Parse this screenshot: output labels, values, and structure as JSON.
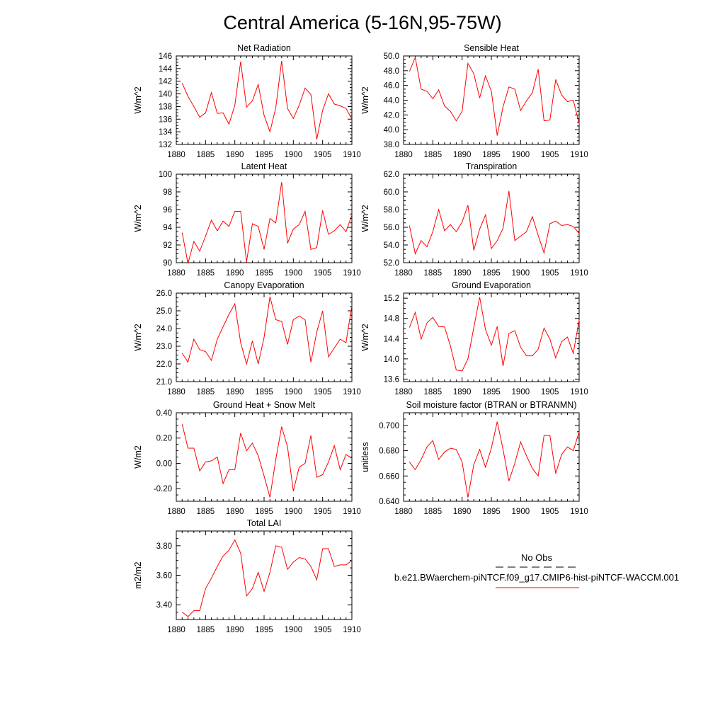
{
  "figure": {
    "title": "Central America (5-16N,95-75W)"
  },
  "legend": {
    "items": [
      {
        "label": "No Obs",
        "style": "dashed",
        "color": "#000000"
      },
      {
        "label": "b.e21.BWaerchem-piNTCF.f09_g17.CMIP6-hist-piNTCF-WACCM.001",
        "style": "solid",
        "color": "#ff0000"
      }
    ]
  },
  "chart_data": [
    {
      "type": "line",
      "title": "Net Radiation",
      "ylabel": "W/m^2",
      "xlim": [
        1880,
        1910
      ],
      "ylim": [
        132,
        146
      ],
      "xticks": [
        1880,
        1885,
        1890,
        1895,
        1900,
        1905,
        1910
      ],
      "yticks": [
        132,
        134,
        136,
        138,
        140,
        142,
        144,
        146
      ],
      "ytick_labels": [
        "132",
        "134",
        "136",
        "138",
        "140",
        "142",
        "144",
        "146"
      ],
      "x": [
        1881,
        1882,
        1883,
        1884,
        1885,
        1886,
        1887,
        1888,
        1889,
        1890,
        1891,
        1892,
        1893,
        1894,
        1895,
        1896,
        1897,
        1898,
        1899,
        1900,
        1901,
        1902,
        1903,
        1904,
        1905,
        1906,
        1907,
        1908,
        1909,
        1910
      ],
      "series": [
        {
          "color": "#ff0000",
          "values": [
            141.7,
            139.6,
            138.0,
            136.3,
            137.0,
            140.2,
            136.9,
            137.0,
            135.2,
            138.2,
            145.1,
            137.9,
            138.9,
            141.5,
            136.6,
            134.0,
            137.8,
            145.2,
            137.7,
            136.1,
            138.2,
            140.9,
            139.9,
            132.8,
            137.4,
            140.0,
            138.4,
            138.1,
            137.7,
            136.0
          ]
        }
      ]
    },
    {
      "type": "line",
      "title": "Sensible Heat",
      "ylabel": "W/m^2",
      "xlim": [
        1880,
        1910
      ],
      "ylim": [
        38,
        50
      ],
      "xticks": [
        1880,
        1885,
        1890,
        1895,
        1900,
        1905,
        1910
      ],
      "yticks": [
        38,
        40,
        42,
        44,
        46,
        48,
        50
      ],
      "ytick_labels": [
        "38.0",
        "40.0",
        "42.0",
        "44.0",
        "46.0",
        "48.0",
        "50.0"
      ],
      "x": [
        1881,
        1882,
        1883,
        1884,
        1885,
        1886,
        1887,
        1888,
        1889,
        1890,
        1891,
        1892,
        1893,
        1894,
        1895,
        1896,
        1897,
        1898,
        1899,
        1900,
        1901,
        1902,
        1903,
        1904,
        1905,
        1906,
        1907,
        1908,
        1909,
        1910
      ],
      "series": [
        {
          "color": "#ff0000",
          "values": [
            47.9,
            49.8,
            45.5,
            45.2,
            44.2,
            45.4,
            43.2,
            42.5,
            41.2,
            42.5,
            49.0,
            47.6,
            44.3,
            47.3,
            45.2,
            39.2,
            43.1,
            45.8,
            45.5,
            42.6,
            43.9,
            45.0,
            48.2,
            41.2,
            41.3,
            46.8,
            44.7,
            43.8,
            44.0,
            40.8
          ]
        }
      ]
    },
    {
      "type": "line",
      "title": "Latent Heat",
      "ylabel": "W/m^2",
      "xlim": [
        1880,
        1910
      ],
      "ylim": [
        90,
        100
      ],
      "xticks": [
        1880,
        1885,
        1890,
        1895,
        1900,
        1905,
        1910
      ],
      "yticks": [
        90,
        92,
        94,
        96,
        98,
        100
      ],
      "ytick_labels": [
        "90",
        "92",
        "94",
        "96",
        "98",
        "100"
      ],
      "x": [
        1881,
        1882,
        1883,
        1884,
        1885,
        1886,
        1887,
        1888,
        1889,
        1890,
        1891,
        1892,
        1893,
        1894,
        1895,
        1896,
        1897,
        1898,
        1899,
        1900,
        1901,
        1902,
        1903,
        1904,
        1905,
        1906,
        1907,
        1908,
        1909,
        1910
      ],
      "series": [
        {
          "color": "#ff0000",
          "values": [
            93.4,
            89.9,
            92.4,
            91.3,
            93.0,
            94.8,
            93.6,
            94.7,
            94.1,
            95.8,
            95.8,
            90.1,
            94.4,
            94.1,
            91.5,
            95.0,
            94.5,
            99.1,
            92.2,
            93.8,
            94.3,
            95.8,
            91.5,
            91.7,
            95.9,
            93.2,
            93.6,
            94.3,
            93.5,
            95.4
          ]
        }
      ]
    },
    {
      "type": "line",
      "title": "Transpiration",
      "ylabel": "W/m^2",
      "xlim": [
        1880,
        1910
      ],
      "ylim": [
        52,
        62
      ],
      "xticks": [
        1880,
        1885,
        1890,
        1895,
        1900,
        1905,
        1910
      ],
      "yticks": [
        52,
        54,
        56,
        58,
        60,
        62
      ],
      "ytick_labels": [
        "52.0",
        "54.0",
        "56.0",
        "58.0",
        "60.0",
        "62.0"
      ],
      "x": [
        1881,
        1882,
        1883,
        1884,
        1885,
        1886,
        1887,
        1888,
        1889,
        1890,
        1891,
        1892,
        1893,
        1894,
        1895,
        1896,
        1897,
        1898,
        1899,
        1900,
        1901,
        1902,
        1903,
        1904,
        1905,
        1906,
        1907,
        1908,
        1909,
        1910
      ],
      "series": [
        {
          "color": "#ff0000",
          "values": [
            56.2,
            53.0,
            54.5,
            53.8,
            55.5,
            58.0,
            55.6,
            56.3,
            55.5,
            56.6,
            58.5,
            53.4,
            55.8,
            57.4,
            53.6,
            54.5,
            55.9,
            60.1,
            54.5,
            55.0,
            55.5,
            57.2,
            55.1,
            53.1,
            56.4,
            56.7,
            56.2,
            56.3,
            56.1,
            55.3
          ]
        }
      ]
    },
    {
      "type": "line",
      "title": "Canopy Evaporation",
      "ylabel": "W/m^2",
      "xlim": [
        1880,
        1910
      ],
      "ylim": [
        21,
        26
      ],
      "xticks": [
        1880,
        1885,
        1890,
        1895,
        1900,
        1905,
        1910
      ],
      "yticks": [
        21,
        22,
        23,
        24,
        25,
        26
      ],
      "ytick_labels": [
        "21.0",
        "22.0",
        "23.0",
        "24.0",
        "25.0",
        "26.0"
      ],
      "x": [
        1881,
        1882,
        1883,
        1884,
        1885,
        1886,
        1887,
        1888,
        1889,
        1890,
        1891,
        1892,
        1893,
        1894,
        1895,
        1896,
        1897,
        1898,
        1899,
        1900,
        1901,
        1902,
        1903,
        1904,
        1905,
        1906,
        1907,
        1908,
        1909,
        1910
      ],
      "series": [
        {
          "color": "#ff0000",
          "values": [
            22.6,
            22.1,
            23.4,
            22.8,
            22.7,
            22.2,
            23.4,
            24.1,
            24.8,
            25.4,
            23.2,
            22.0,
            23.3,
            22.0,
            23.5,
            25.8,
            24.5,
            24.4,
            23.1,
            24.5,
            24.7,
            24.5,
            22.1,
            23.8,
            25.0,
            22.4,
            22.9,
            23.4,
            23.2,
            25.3
          ]
        }
      ]
    },
    {
      "type": "line",
      "title": "Ground Evaporation",
      "ylabel": "W/m^2",
      "xlim": [
        1880,
        1910
      ],
      "ylim": [
        13.55,
        15.3
      ],
      "xticks": [
        1880,
        1885,
        1890,
        1895,
        1900,
        1905,
        1910
      ],
      "yticks": [
        13.6,
        14.0,
        14.4,
        14.8,
        15.2
      ],
      "ytick_labels": [
        "13.6",
        "14.0",
        "14.4",
        "14.8",
        "15.2"
      ],
      "x": [
        1881,
        1882,
        1883,
        1884,
        1885,
        1886,
        1887,
        1888,
        1889,
        1890,
        1891,
        1892,
        1893,
        1894,
        1895,
        1896,
        1897,
        1898,
        1899,
        1900,
        1901,
        1902,
        1903,
        1904,
        1905,
        1906,
        1907,
        1908,
        1909,
        1910
      ],
      "series": [
        {
          "color": "#ff0000",
          "values": [
            14.62,
            14.92,
            14.39,
            14.71,
            14.82,
            14.64,
            14.63,
            14.26,
            13.78,
            13.76,
            14.0,
            14.62,
            15.22,
            14.58,
            14.27,
            14.64,
            13.86,
            14.5,
            14.56,
            14.23,
            14.06,
            14.06,
            14.19,
            14.61,
            14.39,
            14.02,
            14.34,
            14.43,
            14.11,
            14.77
          ]
        }
      ]
    },
    {
      "type": "line",
      "title": "Ground Heat + Snow Melt",
      "ylabel": "W/m2",
      "xlim": [
        1880,
        1910
      ],
      "ylim": [
        -0.3,
        0.4
      ],
      "xticks": [
        1880,
        1885,
        1890,
        1895,
        1900,
        1905,
        1910
      ],
      "yticks": [
        -0.2,
        0.0,
        0.2,
        0.4
      ],
      "ytick_labels": [
        "-0.20",
        "0.00",
        "0.20",
        "0.40"
      ],
      "x": [
        1881,
        1882,
        1883,
        1884,
        1885,
        1886,
        1887,
        1888,
        1889,
        1890,
        1891,
        1892,
        1893,
        1894,
        1895,
        1896,
        1897,
        1898,
        1899,
        1900,
        1901,
        1902,
        1903,
        1904,
        1905,
        1906,
        1907,
        1908,
        1909,
        1910
      ],
      "series": [
        {
          "color": "#ff0000",
          "values": [
            0.31,
            0.12,
            0.12,
            -0.06,
            0.01,
            0.02,
            0.05,
            -0.16,
            -0.05,
            -0.05,
            0.24,
            0.1,
            0.16,
            0.06,
            -0.1,
            -0.27,
            0.03,
            0.29,
            0.13,
            -0.22,
            -0.03,
            0.0,
            0.22,
            -0.11,
            -0.09,
            0.01,
            0.14,
            -0.05,
            0.07,
            0.04
          ]
        }
      ]
    },
    {
      "type": "line",
      "title": "Soil moisture factor (BTRAN or BTRANMN)",
      "ylabel": "unitless",
      "xlim": [
        1880,
        1910
      ],
      "ylim": [
        0.64,
        0.71
      ],
      "xticks": [
        1880,
        1885,
        1890,
        1895,
        1900,
        1905,
        1910
      ],
      "yticks": [
        0.64,
        0.66,
        0.68,
        0.7
      ],
      "ytick_labels": [
        "0.640",
        "0.660",
        "0.680",
        "0.700"
      ],
      "x": [
        1881,
        1882,
        1883,
        1884,
        1885,
        1886,
        1887,
        1888,
        1889,
        1890,
        1891,
        1892,
        1893,
        1894,
        1895,
        1896,
        1897,
        1898,
        1899,
        1900,
        1901,
        1902,
        1903,
        1904,
        1905,
        1906,
        1907,
        1908,
        1909,
        1910
      ],
      "series": [
        {
          "color": "#ff0000",
          "values": [
            0.671,
            0.665,
            0.673,
            0.683,
            0.688,
            0.673,
            0.679,
            0.682,
            0.681,
            0.671,
            0.643,
            0.669,
            0.681,
            0.667,
            0.682,
            0.703,
            0.681,
            0.656,
            0.67,
            0.687,
            0.676,
            0.666,
            0.66,
            0.692,
            0.692,
            0.662,
            0.677,
            0.683,
            0.68,
            0.695
          ]
        }
      ]
    },
    {
      "type": "line",
      "title": "Total LAI",
      "ylabel": "m2/m2",
      "xlim": [
        1880,
        1910
      ],
      "ylim": [
        3.3,
        3.9
      ],
      "xticks": [
        1880,
        1885,
        1890,
        1895,
        1900,
        1905,
        1910
      ],
      "yticks": [
        3.4,
        3.6,
        3.8
      ],
      "ytick_labels": [
        "3.40",
        "3.60",
        "3.80"
      ],
      "x": [
        1881,
        1882,
        1883,
        1884,
        1885,
        1886,
        1887,
        1888,
        1889,
        1890,
        1891,
        1892,
        1893,
        1894,
        1895,
        1896,
        1897,
        1898,
        1899,
        1900,
        1901,
        1902,
        1903,
        1904,
        1905,
        1906,
        1907,
        1908,
        1909,
        1910
      ],
      "series": [
        {
          "color": "#ff0000",
          "values": [
            3.35,
            3.32,
            3.36,
            3.36,
            3.51,
            3.58,
            3.66,
            3.73,
            3.77,
            3.84,
            3.75,
            3.46,
            3.51,
            3.62,
            3.49,
            3.62,
            3.8,
            3.79,
            3.64,
            3.69,
            3.72,
            3.71,
            3.66,
            3.57,
            3.78,
            3.78,
            3.66,
            3.67,
            3.67,
            3.7
          ]
        }
      ]
    }
  ]
}
